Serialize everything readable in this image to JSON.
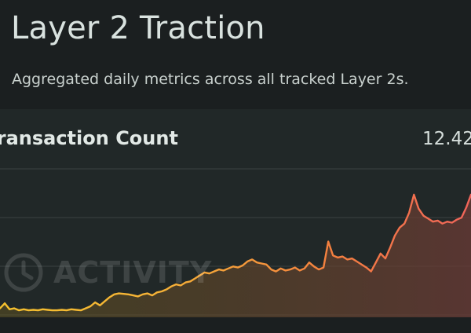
{
  "header": {
    "title": "Layer 2 Traction",
    "subtitle": "Aggregated daily metrics across all tracked Layer 2s."
  },
  "chart_card": {
    "title": "Transaction Count",
    "value": "12.42",
    "watermark": {
      "icon": "clock-icon",
      "text": "ACTIVITY"
    }
  },
  "colors": {
    "background": "#1b1f20",
    "card": "#212828",
    "grid": "#3a4242",
    "line_start": "#f5c12e",
    "line_mid": "#f59a3a",
    "line_end": "#f0645a"
  },
  "chart_data": {
    "type": "area",
    "title": "Transaction Count",
    "grid": true,
    "x": [
      0,
      1,
      2,
      3,
      4,
      5,
      6,
      7,
      8,
      9,
      10,
      11,
      12,
      13,
      14,
      15,
      16,
      17,
      18,
      19,
      20,
      21,
      22,
      23,
      24,
      25,
      26,
      27,
      28,
      29,
      30,
      31,
      32,
      33,
      34,
      35,
      36,
      37,
      38,
      39,
      40,
      41,
      42,
      43,
      44,
      45,
      46,
      47,
      48,
      49,
      50,
      51,
      52,
      53,
      54,
      55,
      56,
      57,
      58,
      59,
      60,
      61,
      62,
      63,
      64,
      65,
      66,
      67,
      68,
      69,
      70,
      71,
      72,
      73,
      74,
      75,
      76,
      77,
      78,
      79,
      80,
      81,
      82,
      83,
      84,
      85,
      86,
      87,
      88,
      89,
      90,
      91,
      92,
      93,
      94,
      95,
      96,
      97,
      98,
      99
    ],
    "values": [
      0.9,
      1.4,
      0.8,
      0.9,
      0.7,
      0.8,
      0.7,
      0.75,
      0.7,
      0.8,
      0.75,
      0.7,
      0.7,
      0.75,
      0.7,
      0.8,
      0.75,
      0.7,
      0.9,
      1.1,
      1.5,
      1.2,
      1.6,
      2.0,
      2.3,
      2.4,
      2.35,
      2.3,
      2.2,
      2.1,
      2.3,
      2.4,
      2.2,
      2.5,
      2.6,
      2.8,
      3.1,
      3.3,
      3.2,
      3.5,
      3.6,
      3.9,
      4.2,
      4.5,
      4.4,
      4.6,
      4.8,
      4.7,
      4.9,
      5.1,
      5.0,
      5.2,
      5.6,
      5.8,
      5.5,
      5.4,
      5.3,
      4.8,
      4.6,
      4.9,
      4.7,
      4.8,
      5.0,
      4.7,
      4.9,
      5.5,
      5.1,
      4.8,
      5.0,
      7.6,
      6.2,
      6.0,
      6.1,
      5.8,
      5.9,
      5.6,
      5.3,
      5.0,
      4.6,
      5.5,
      6.4,
      5.9,
      7.0,
      8.2,
      9.0,
      9.4,
      10.5,
      12.3,
      10.9,
      10.2,
      9.9,
      9.6,
      9.7,
      9.4,
      9.6,
      9.5,
      9.8,
      10.0,
      11.0,
      12.3
    ],
    "ylim": [
      0,
      16
    ]
  }
}
